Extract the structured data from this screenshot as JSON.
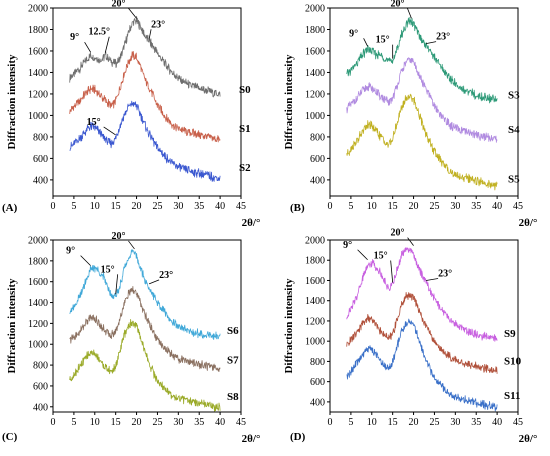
{
  "chart_data": [
    {
      "type": "line",
      "panel": "(A)",
      "xlabel": "2θ/°",
      "ylabel": "Diffraction intensity",
      "xlim": [
        0,
        45
      ],
      "ylim": [
        250,
        2000
      ],
      "xticks": [
        0,
        5,
        10,
        15,
        20,
        25,
        30,
        35,
        40,
        45
      ],
      "yticks": [
        400,
        600,
        800,
        1000,
        1200,
        1400,
        1600,
        1800,
        2000
      ],
      "series": [
        {
          "name": "S0",
          "color": "#6e6e6e",
          "x": [
            4,
            6,
            8,
            9,
            10,
            11,
            12,
            12.5,
            13,
            14,
            15,
            16,
            17,
            18,
            19,
            20,
            21,
            22,
            23,
            24,
            25,
            27,
            29,
            31,
            33,
            35,
            37,
            40
          ],
          "y": [
            1350,
            1420,
            1510,
            1560,
            1540,
            1520,
            1530,
            1560,
            1540,
            1500,
            1480,
            1530,
            1640,
            1760,
            1860,
            1880,
            1820,
            1740,
            1690,
            1640,
            1580,
            1470,
            1380,
            1320,
            1280,
            1250,
            1230,
            1190
          ]
        },
        {
          "name": "S1",
          "color": "#c8604a",
          "x": [
            4,
            6,
            8,
            9,
            10,
            11,
            12,
            13,
            14,
            15,
            16,
            17,
            18,
            19,
            20,
            21,
            22,
            23,
            24,
            25,
            27,
            29,
            31,
            33,
            35,
            37,
            40
          ],
          "y": [
            1040,
            1120,
            1210,
            1250,
            1240,
            1200,
            1160,
            1120,
            1090,
            1130,
            1250,
            1380,
            1490,
            1560,
            1540,
            1450,
            1340,
            1260,
            1180,
            1100,
            980,
            900,
            860,
            840,
            820,
            800,
            770
          ]
        },
        {
          "name": "S2",
          "color": "#3b58d0",
          "x": [
            4,
            6,
            8,
            9,
            10,
            11,
            12,
            13,
            14,
            15,
            16,
            17,
            18,
            19,
            20,
            21,
            22,
            23,
            24,
            25,
            27,
            29,
            31,
            33,
            35,
            37,
            40
          ],
          "y": [
            700,
            770,
            860,
            900,
            890,
            850,
            800,
            760,
            730,
            790,
            900,
            1000,
            1080,
            1110,
            1090,
            1000,
            910,
            830,
            760,
            700,
            610,
            540,
            500,
            480,
            460,
            440,
            410
          ]
        }
      ],
      "annotations": [
        {
          "text": "9°",
          "x": 9,
          "y": 1570
        },
        {
          "text": "12.5°",
          "x": 12.5,
          "y": 1565
        },
        {
          "text": "20°",
          "x": 20,
          "y": 1885
        },
        {
          "text": "23°",
          "x": 23,
          "y": 1690
        },
        {
          "text": "15°",
          "x": 15,
          "y": 800
        }
      ]
    },
    {
      "type": "line",
      "panel": "(B)",
      "xlabel": "2θ/°",
      "ylabel": "Diffraction intensity",
      "xlim": [
        0,
        45
      ],
      "ylim": [
        250,
        2000
      ],
      "xticks": [
        0,
        5,
        10,
        15,
        20,
        25,
        30,
        35,
        40,
        45
      ],
      "yticks": [
        400,
        600,
        800,
        1000,
        1200,
        1400,
        1600,
        1800,
        2000
      ],
      "series": [
        {
          "name": "S3",
          "color": "#2e9a78",
          "x": [
            4,
            6,
            8,
            9,
            10,
            11,
            12,
            13,
            14,
            15,
            16,
            17,
            18,
            19,
            20,
            21,
            22,
            23,
            24,
            25,
            27,
            29,
            31,
            33,
            35,
            37,
            40
          ],
          "y": [
            1380,
            1460,
            1570,
            1620,
            1600,
            1570,
            1560,
            1540,
            1500,
            1510,
            1610,
            1740,
            1830,
            1880,
            1850,
            1770,
            1700,
            1650,
            1600,
            1540,
            1430,
            1330,
            1260,
            1220,
            1190,
            1170,
            1140
          ]
        },
        {
          "name": "S4",
          "color": "#b08ae0",
          "x": [
            4,
            6,
            8,
            9,
            10,
            11,
            12,
            13,
            14,
            15,
            16,
            17,
            18,
            19,
            20,
            21,
            22,
            23,
            24,
            25,
            27,
            29,
            31,
            33,
            35,
            37,
            40
          ],
          "y": [
            1060,
            1140,
            1230,
            1270,
            1260,
            1220,
            1180,
            1150,
            1120,
            1160,
            1270,
            1390,
            1480,
            1520,
            1500,
            1410,
            1320,
            1240,
            1170,
            1090,
            980,
            900,
            860,
            840,
            820,
            800,
            780
          ]
        },
        {
          "name": "S5",
          "color": "#c0b020",
          "x": [
            4,
            6,
            8,
            9,
            10,
            11,
            12,
            13,
            14,
            15,
            16,
            17,
            18,
            19,
            20,
            21,
            22,
            23,
            24,
            25,
            27,
            29,
            31,
            33,
            35,
            37,
            40
          ],
          "y": [
            640,
            740,
            860,
            910,
            900,
            860,
            810,
            760,
            720,
            780,
            920,
            1060,
            1150,
            1180,
            1150,
            1050,
            930,
            830,
            740,
            660,
            550,
            470,
            430,
            410,
            390,
            370,
            340
          ]
        }
      ],
      "annotations": [
        {
          "text": "9°",
          "x": 9,
          "y": 1625
        },
        {
          "text": "15°",
          "x": 15,
          "y": 1510
        },
        {
          "text": "20°",
          "x": 19.5,
          "y": 1885
        },
        {
          "text": "23°",
          "x": 23,
          "y": 1650
        }
      ]
    },
    {
      "type": "line",
      "panel": "(C)",
      "xlabel": "2θ/°",
      "ylabel": "Diffraction intensity",
      "xlim": [
        0,
        45
      ],
      "ylim": [
        350,
        2000
      ],
      "xticks": [
        0,
        5,
        10,
        15,
        20,
        25,
        30,
        35,
        40,
        45
      ],
      "yticks": [
        400,
        600,
        800,
        1000,
        1200,
        1400,
        1600,
        1800,
        2000
      ],
      "series": [
        {
          "name": "S6",
          "color": "#40a8d8",
          "x": [
            4,
            6,
            8,
            9,
            10,
            11,
            12,
            13,
            14,
            15,
            16,
            17,
            18,
            19,
            20,
            21,
            22,
            23,
            24,
            25,
            27,
            29,
            31,
            33,
            35,
            37,
            40
          ],
          "y": [
            1320,
            1420,
            1620,
            1720,
            1730,
            1700,
            1650,
            1560,
            1480,
            1450,
            1560,
            1720,
            1830,
            1890,
            1840,
            1720,
            1610,
            1540,
            1470,
            1400,
            1290,
            1200,
            1150,
            1120,
            1100,
            1090,
            1080
          ]
        },
        {
          "name": "S7",
          "color": "#8a7060",
          "x": [
            4,
            6,
            8,
            9,
            10,
            11,
            12,
            13,
            14,
            15,
            16,
            17,
            18,
            19,
            20,
            21,
            22,
            23,
            24,
            25,
            27,
            29,
            31,
            33,
            35,
            37,
            40
          ],
          "y": [
            1040,
            1100,
            1210,
            1260,
            1250,
            1200,
            1150,
            1110,
            1090,
            1120,
            1240,
            1380,
            1480,
            1520,
            1490,
            1390,
            1290,
            1200,
            1120,
            1050,
            950,
            880,
            850,
            830,
            810,
            790,
            760
          ]
        },
        {
          "name": "S8",
          "color": "#9aaa28",
          "x": [
            4,
            6,
            8,
            9,
            10,
            11,
            12,
            13,
            14,
            15,
            16,
            17,
            18,
            19,
            20,
            21,
            22,
            23,
            24,
            25,
            27,
            29,
            31,
            33,
            35,
            37,
            40
          ],
          "y": [
            660,
            760,
            880,
            920,
            910,
            860,
            800,
            760,
            730,
            790,
            940,
            1080,
            1180,
            1210,
            1170,
            1060,
            930,
            820,
            730,
            650,
            560,
            500,
            470,
            450,
            430,
            410,
            390
          ]
        }
      ],
      "annotations": [
        {
          "text": "9°",
          "x": 9,
          "y": 1735
        },
        {
          "text": "15°",
          "x": 15,
          "y": 1460
        },
        {
          "text": "20°",
          "x": 19.5,
          "y": 1895
        },
        {
          "text": "23°",
          "x": 23,
          "y": 1560
        }
      ]
    },
    {
      "type": "line",
      "panel": "(D)",
      "xlabel": "2θ/°",
      "ylabel": "Diffraction intensity",
      "xlim": [
        0,
        45
      ],
      "ylim": [
        300,
        2000
      ],
      "xticks": [
        0,
        5,
        10,
        15,
        20,
        25,
        30,
        35,
        40,
        45
      ],
      "yticks": [
        400,
        600,
        800,
        1000,
        1200,
        1400,
        1600,
        1800,
        2000
      ],
      "series": [
        {
          "name": "S9",
          "color": "#c860e0",
          "x": [
            4,
            6,
            8,
            9,
            10,
            11,
            12,
            13,
            14,
            15,
            16,
            17,
            18,
            19,
            20,
            21,
            22,
            23,
            24,
            25,
            27,
            29,
            31,
            33,
            35,
            37,
            40
          ],
          "y": [
            1240,
            1400,
            1640,
            1760,
            1780,
            1740,
            1680,
            1600,
            1520,
            1560,
            1700,
            1840,
            1900,
            1920,
            1850,
            1740,
            1660,
            1580,
            1500,
            1420,
            1300,
            1200,
            1140,
            1100,
            1070,
            1050,
            1020
          ]
        },
        {
          "name": "S10",
          "color": "#b0503a",
          "x": [
            4,
            6,
            8,
            9,
            10,
            11,
            12,
            13,
            14,
            15,
            16,
            17,
            18,
            19,
            20,
            21,
            22,
            23,
            24,
            25,
            27,
            29,
            31,
            33,
            35,
            37,
            40
          ],
          "y": [
            960,
            1060,
            1180,
            1230,
            1220,
            1170,
            1110,
            1060,
            1030,
            1070,
            1200,
            1340,
            1430,
            1460,
            1430,
            1340,
            1240,
            1150,
            1070,
            1000,
            900,
            830,
            790,
            770,
            750,
            730,
            710
          ]
        },
        {
          "name": "S11",
          "color": "#3a70c8",
          "x": [
            4,
            6,
            8,
            9,
            10,
            11,
            12,
            13,
            14,
            15,
            16,
            17,
            18,
            19,
            20,
            21,
            22,
            23,
            24,
            25,
            27,
            29,
            31,
            33,
            35,
            37,
            40
          ],
          "y": [
            640,
            760,
            880,
            930,
            920,
            870,
            810,
            760,
            730,
            800,
            940,
            1080,
            1160,
            1200,
            1160,
            1050,
            920,
            810,
            720,
            640,
            540,
            470,
            430,
            410,
            390,
            370,
            350
          ]
        }
      ],
      "annotations": [
        {
          "text": "9°",
          "x": 9,
          "y": 1785
        },
        {
          "text": "15°",
          "x": 15,
          "y": 1560
        },
        {
          "text": "20°",
          "x": 20,
          "y": 1925
        },
        {
          "text": "23°",
          "x": 23,
          "y": 1580
        }
      ]
    }
  ]
}
